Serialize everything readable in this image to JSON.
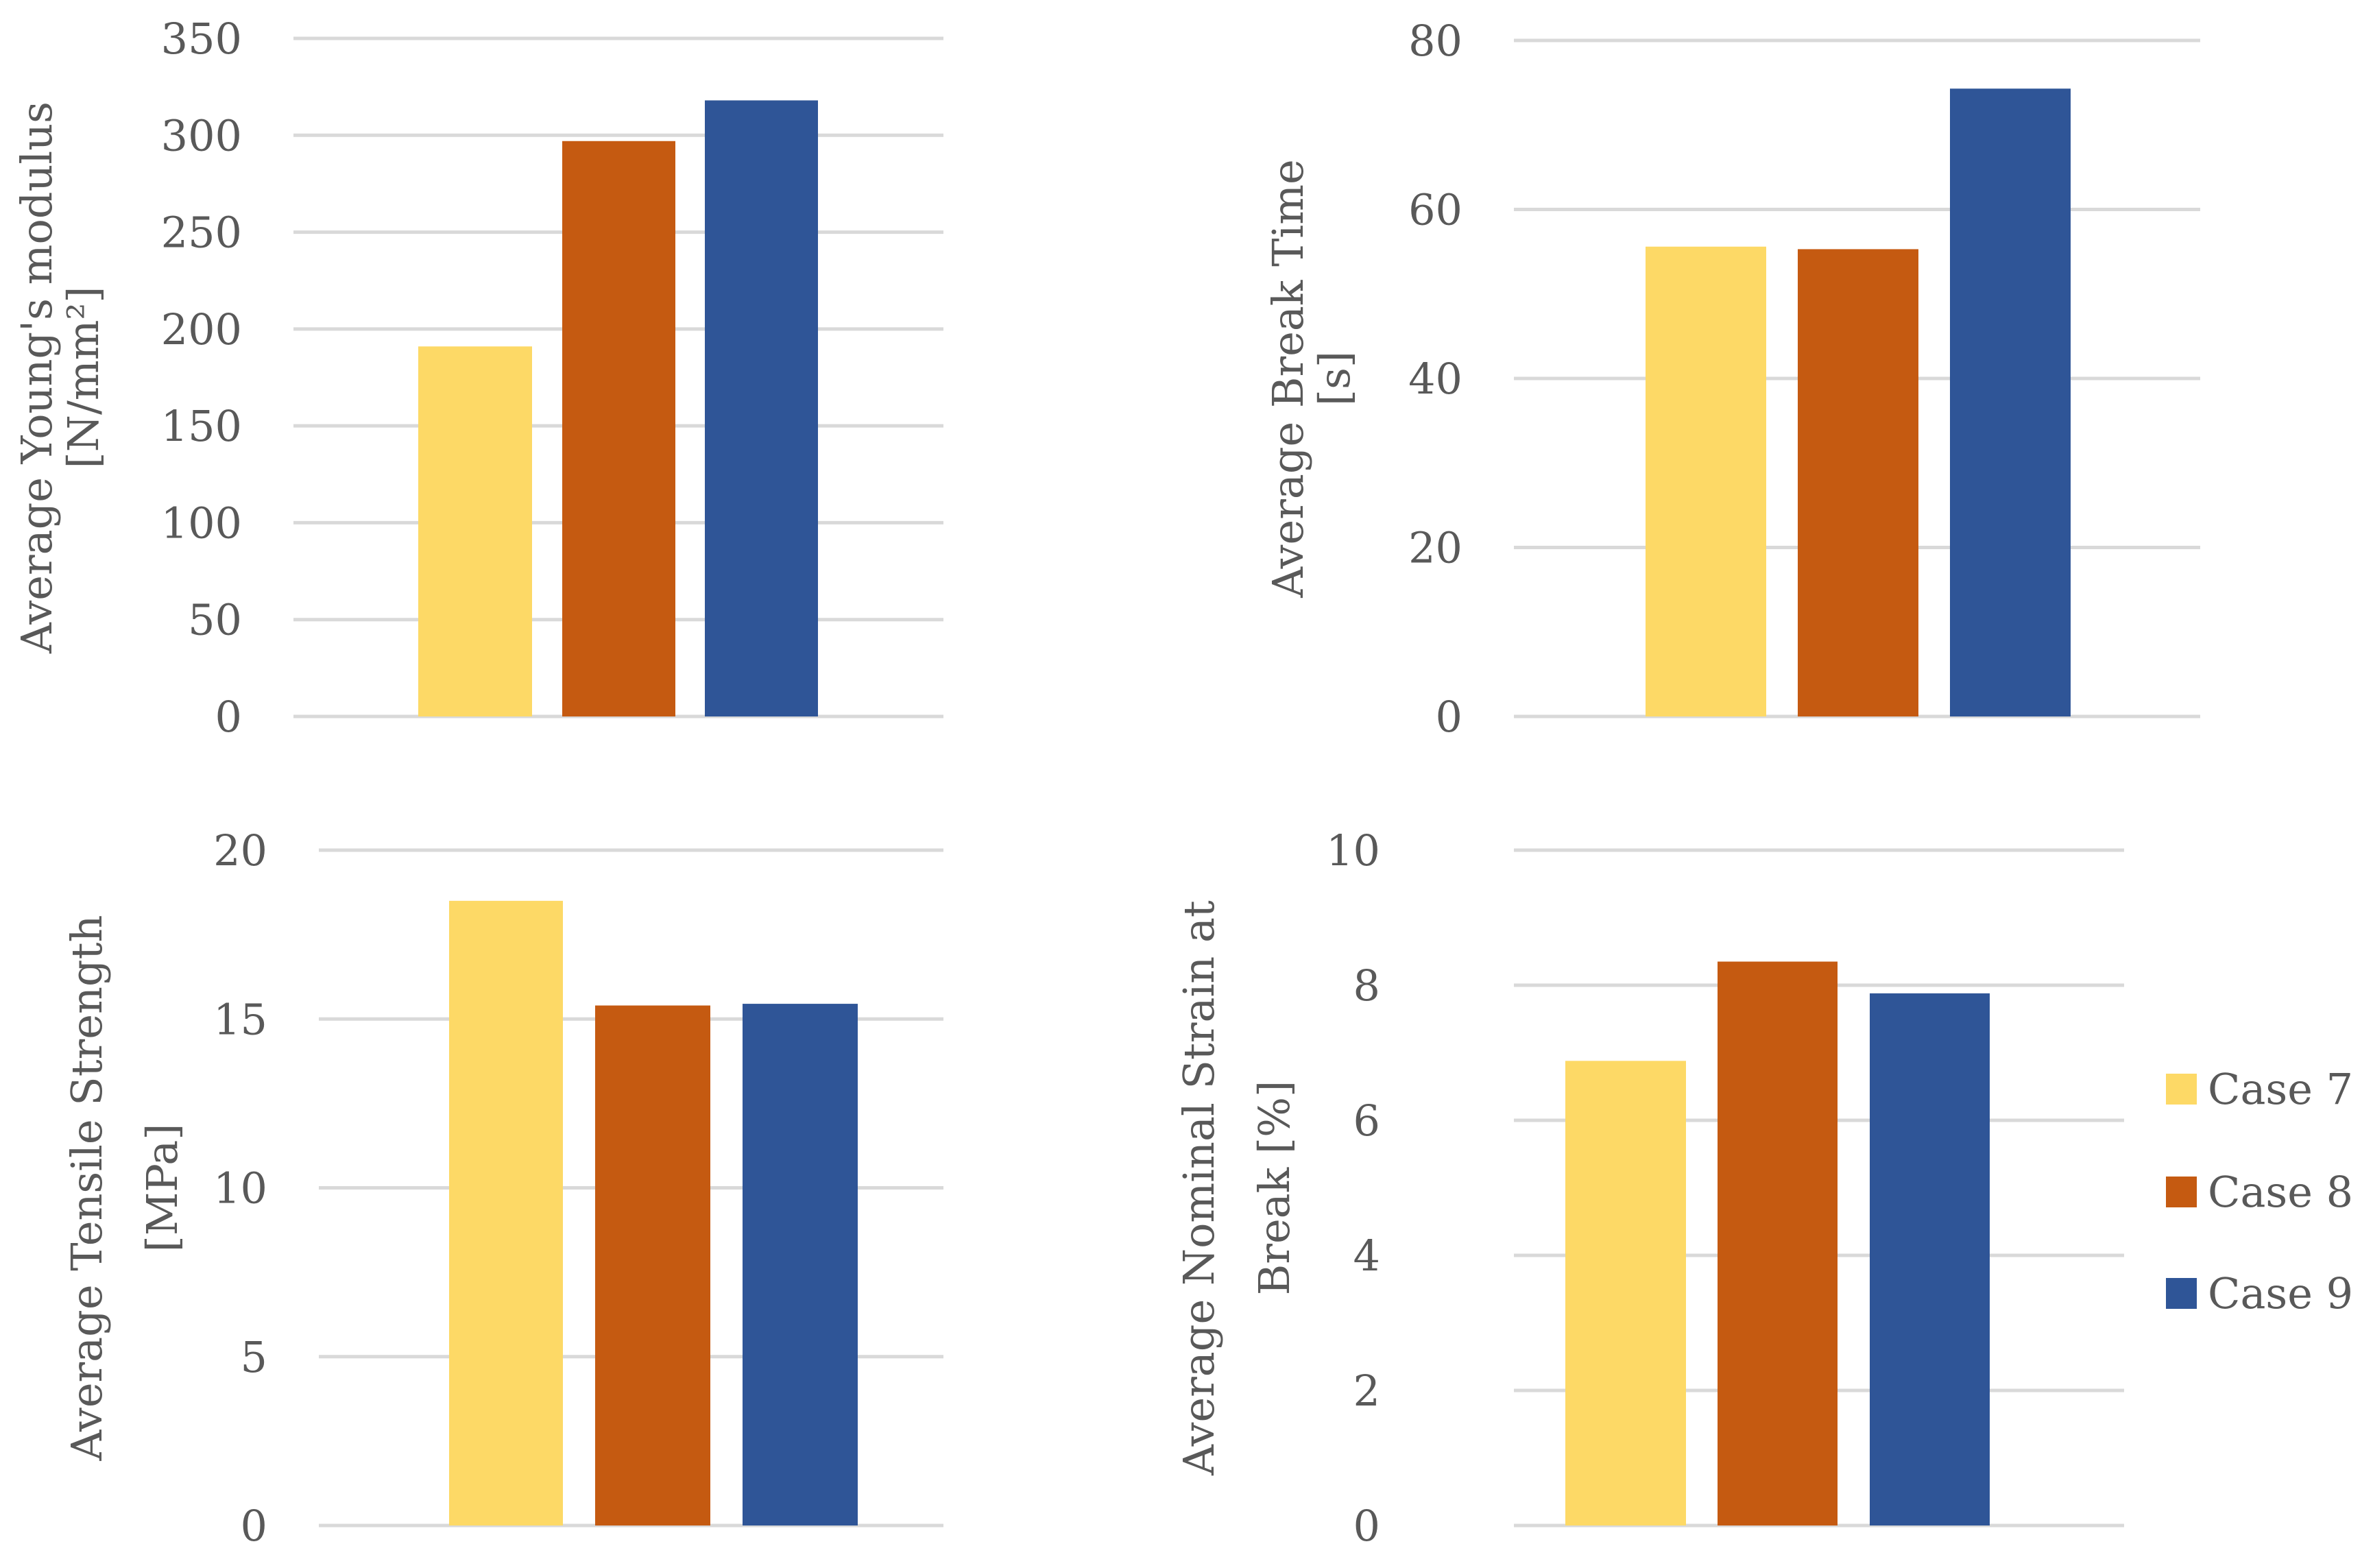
{
  "colors": {
    "Case 7": "#FDD966",
    "Case 8": "#C55A11",
    "Case 9": "#2F5597",
    "grid": "#D9D9D9",
    "text": "#595959"
  },
  "legend": {
    "position": "right",
    "entries": [
      "Case 7",
      "Case 8",
      "Case 9"
    ]
  },
  "chart_data": [
    {
      "type": "bar",
      "ylabel_lines": [
        "Average Young's modulus",
        "[N/mm²]"
      ],
      "ylim": [
        0,
        350
      ],
      "ticks": [
        0,
        50,
        100,
        150,
        200,
        250,
        300,
        350
      ],
      "tick_labels": [
        "0",
        "50",
        "100",
        "150",
        "200",
        "250",
        "300",
        "350"
      ],
      "series": [
        {
          "name": "Case 7",
          "values": [
            191
          ]
        },
        {
          "name": "Case 8",
          "values": [
            297
          ]
        },
        {
          "name": "Case 9",
          "values": [
            318
          ]
        }
      ]
    },
    {
      "type": "bar",
      "ylabel_lines": [
        "Average Break Time",
        "[s]"
      ],
      "ylim": [
        0,
        80
      ],
      "ticks": [
        0,
        20,
        40,
        60,
        80
      ],
      "tick_labels": [
        "0",
        "20",
        "40",
        "60",
        "80"
      ],
      "series": [
        {
          "name": "Case 7",
          "values": [
            55.6
          ]
        },
        {
          "name": "Case 8",
          "values": [
            55.3
          ]
        },
        {
          "name": "Case 9",
          "values": [
            74.3
          ]
        }
      ]
    },
    {
      "type": "bar",
      "ylabel_lines": [
        "Average Tensile Strength",
        "[MPa]"
      ],
      "ylim": [
        0,
        20
      ],
      "ticks": [
        0,
        5,
        10,
        15,
        20
      ],
      "tick_labels": [
        "0",
        "5",
        "10",
        "15",
        "20"
      ],
      "series": [
        {
          "name": "Case 7",
          "values": [
            18.5
          ]
        },
        {
          "name": "Case 8",
          "values": [
            15.4
          ]
        },
        {
          "name": "Case 9",
          "values": [
            15.45
          ]
        }
      ]
    },
    {
      "type": "bar",
      "ylabel_lines": [
        "Average Nominal Strain at",
        "Break [%]"
      ],
      "ylim": [
        0,
        10
      ],
      "ticks": [
        0,
        2,
        4,
        6,
        8,
        10
      ],
      "tick_labels": [
        "0",
        "2",
        "4",
        "6",
        "8",
        "10"
      ],
      "series": [
        {
          "name": "Case 7",
          "values": [
            6.88
          ]
        },
        {
          "name": "Case 8",
          "values": [
            8.35
          ]
        },
        {
          "name": "Case 9",
          "values": [
            7.88
          ]
        }
      ]
    }
  ]
}
